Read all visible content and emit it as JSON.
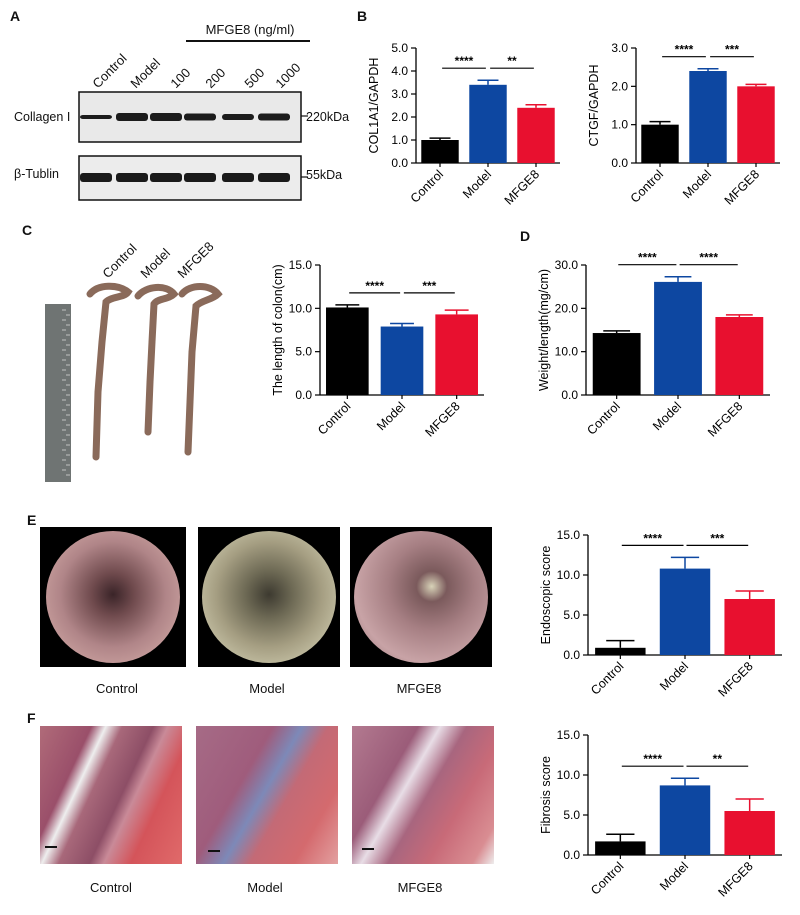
{
  "panels": {
    "A": "A",
    "B": "B",
    "C": "C",
    "D": "D",
    "E": "E",
    "F": "F"
  },
  "blot": {
    "header": "MFGE8 (ng/ml)",
    "lanes": [
      "Control",
      "Model",
      "100",
      "200",
      "500",
      "1000"
    ],
    "bands": [
      {
        "name": "Collagen I",
        "kda": "220kDa"
      },
      {
        "name": "β-Tublin",
        "kda": "55kDa"
      }
    ]
  },
  "colon_photo": {
    "labels": [
      "Control",
      "Model",
      "MFGE8"
    ]
  },
  "endoscopy": {
    "captions": [
      "Control",
      "Model",
      "MFGE8"
    ]
  },
  "histology": {
    "captions": [
      "Control",
      "Model",
      "MFGE8"
    ]
  },
  "colors": {
    "control": "#000000",
    "model": "#0d47a1",
    "mfge8": "#e8102f"
  },
  "chart_data": [
    {
      "id": "col1a1",
      "panel": "B",
      "type": "bar",
      "categories": [
        "Control",
        "Model",
        "MFGE8"
      ],
      "values": [
        1.0,
        3.4,
        2.4
      ],
      "errors": [
        0.08,
        0.2,
        0.13
      ],
      "ylabel": "COL1A1/GAPDH",
      "ylim": [
        0,
        5
      ],
      "yticks": [
        "0.0",
        "1.0",
        "2.0",
        "3.0",
        "4.0",
        "5.0"
      ],
      "ytickvals": [
        0,
        1,
        2,
        3,
        4,
        5
      ],
      "sig": [
        {
          "from": 0,
          "to": 1,
          "label": "****"
        },
        {
          "from": 1,
          "to": 2,
          "label": "**"
        }
      ]
    },
    {
      "id": "ctgf",
      "panel": "B",
      "type": "bar",
      "categories": [
        "Control",
        "Model",
        "MFGE8"
      ],
      "values": [
        1.0,
        2.4,
        2.0
      ],
      "errors": [
        0.08,
        0.06,
        0.05
      ],
      "ylabel": "CTGF/GAPDH",
      "ylim": [
        0,
        3
      ],
      "yticks": [
        "0.0",
        "1.0",
        "2.0",
        "3.0"
      ],
      "ytickvals": [
        0,
        1,
        2,
        3
      ],
      "sig": [
        {
          "from": 0,
          "to": 1,
          "label": "****"
        },
        {
          "from": 1,
          "to": 2,
          "label": "***"
        }
      ]
    },
    {
      "id": "colon_length",
      "panel": "C",
      "type": "bar",
      "categories": [
        "Control",
        "Model",
        "MFGE8"
      ],
      "values": [
        10.1,
        7.9,
        9.3
      ],
      "errors": [
        0.3,
        0.35,
        0.5
      ],
      "ylabel": "The length of colon(cm)",
      "ylim": [
        0,
        15
      ],
      "yticks": [
        "0.0",
        "5.0",
        "10.0",
        "15.0"
      ],
      "ytickvals": [
        0,
        5,
        10,
        15
      ],
      "sig": [
        {
          "from": 0,
          "to": 1,
          "label": "****"
        },
        {
          "from": 1,
          "to": 2,
          "label": "***"
        }
      ]
    },
    {
      "id": "weight_length",
      "panel": "D",
      "type": "bar",
      "categories": [
        "Control",
        "Model",
        "MFGE8"
      ],
      "values": [
        14.3,
        26.1,
        18.0
      ],
      "errors": [
        0.5,
        1.2,
        0.5
      ],
      "ylabel": "Weight/length(mg/cm)",
      "ylim": [
        0,
        30
      ],
      "yticks": [
        "0.0",
        "10.0",
        "20.0",
        "30.0"
      ],
      "ytickvals": [
        0,
        10,
        20,
        30
      ],
      "sig": [
        {
          "from": 0,
          "to": 1,
          "label": "****"
        },
        {
          "from": 1,
          "to": 2,
          "label": "****"
        }
      ]
    },
    {
      "id": "endoscopic",
      "panel": "E",
      "type": "bar",
      "categories": [
        "Control",
        "Model",
        "MFGE8"
      ],
      "values": [
        0.9,
        10.8,
        7.0
      ],
      "errors": [
        0.9,
        1.4,
        1.0
      ],
      "ylabel": "Endoscopic score",
      "ylim": [
        0,
        15
      ],
      "yticks": [
        "0.0",
        "5.0",
        "10.0",
        "15.0"
      ],
      "ytickvals": [
        0,
        5,
        10,
        15
      ],
      "sig": [
        {
          "from": 0,
          "to": 1,
          "label": "****"
        },
        {
          "from": 1,
          "to": 2,
          "label": "***"
        }
      ]
    },
    {
      "id": "fibrosis",
      "panel": "F",
      "type": "bar",
      "categories": [
        "Control",
        "Model",
        "MFGE8"
      ],
      "values": [
        1.7,
        8.7,
        5.5
      ],
      "errors": [
        0.9,
        0.9,
        1.5
      ],
      "ylabel": "Fibrosis score",
      "ylim": [
        0,
        15
      ],
      "yticks": [
        "0.0",
        "5.0",
        "10.0",
        "15.0"
      ],
      "ytickvals": [
        0,
        5,
        10,
        15
      ],
      "sig": [
        {
          "from": 0,
          "to": 1,
          "label": "****"
        },
        {
          "from": 1,
          "to": 2,
          "label": "**"
        }
      ]
    }
  ]
}
